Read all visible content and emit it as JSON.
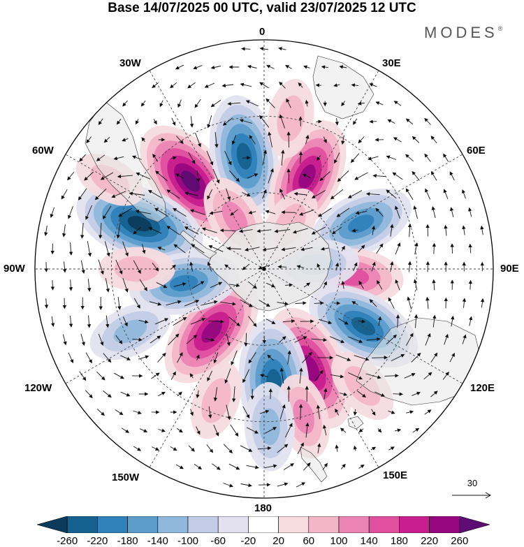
{
  "title": "Base 14/07/2025 00 UTC, valid 23/07/2025 12 UTC",
  "brand": "MODES",
  "brand_mark": "®",
  "longitude_labels": {
    "lon_0": "0",
    "lon_30e": "30E",
    "lon_60e": "60E",
    "lon_90e": "90E",
    "lon_120e": "120E",
    "lon_150e": "150E",
    "lon_180": "180",
    "lon_150w": "150W",
    "lon_120w": "120W",
    "lon_90w": "90W",
    "lon_60w": "60W",
    "lon_30w": "30W"
  },
  "vector_reference": {
    "label": "30",
    "value": 30
  },
  "colorbar": {
    "tick_labels": [
      "-260",
      "-220",
      "-180",
      "-140",
      "-100",
      "-60",
      "-20",
      "20",
      "60",
      "100",
      "140",
      "180",
      "220",
      "260"
    ],
    "colors": [
      "#0c3a5c",
      "#15618f",
      "#2f82b9",
      "#5d9dcb",
      "#90b8dc",
      "#c3cce6",
      "#e3e1ef",
      "#ffffff",
      "#f6dbdf",
      "#f3b6c8",
      "#ec85b4",
      "#e04fa0",
      "#c81e8e",
      "#96077f",
      "#5d0c72"
    ]
  },
  "palette": {
    "land": "#e8e8e8",
    "grid": "#444444",
    "arrows": "#111111"
  },
  "anomaly_centers": [
    {
      "lon": -40,
      "lat": -45,
      "value": 230
    },
    {
      "lon": -10,
      "lat": -45,
      "value": -200
    },
    {
      "lon": 25,
      "lat": -50,
      "value": 190
    },
    {
      "lon": -70,
      "lat": -38,
      "value": -230
    },
    {
      "lon": 65,
      "lat": -48,
      "value": -150
    },
    {
      "lon": 95,
      "lat": -55,
      "value": 130
    },
    {
      "lon": 120,
      "lat": -45,
      "value": -190
    },
    {
      "lon": 155,
      "lat": -47,
      "value": 220
    },
    {
      "lon": 175,
      "lat": -45,
      "value": -220
    },
    {
      "lon": -140,
      "lat": -58,
      "value": 200
    },
    {
      "lon": -100,
      "lat": -58,
      "value": -160
    },
    {
      "lon": -90,
      "lat": -40,
      "value": 50
    },
    {
      "lon": 85,
      "lat": -70,
      "value": -90
    },
    {
      "lon": -115,
      "lat": -32,
      "value": -80
    },
    {
      "lon": 30,
      "lat": -70,
      "value": 60
    },
    {
      "lon": -30,
      "lat": -67,
      "value": 90
    },
    {
      "lon": 165,
      "lat": -30,
      "value": 80
    },
    {
      "lon": 10,
      "lat": -30,
      "value": 60
    },
    {
      "lon": -160,
      "lat": -35,
      "value": 60
    },
    {
      "lon": 140,
      "lat": -30,
      "value": 60
    },
    {
      "lon": 178,
      "lat": -28,
      "value": -90
    },
    {
      "lon": -60,
      "lat": -20,
      "value": 40
    }
  ]
}
